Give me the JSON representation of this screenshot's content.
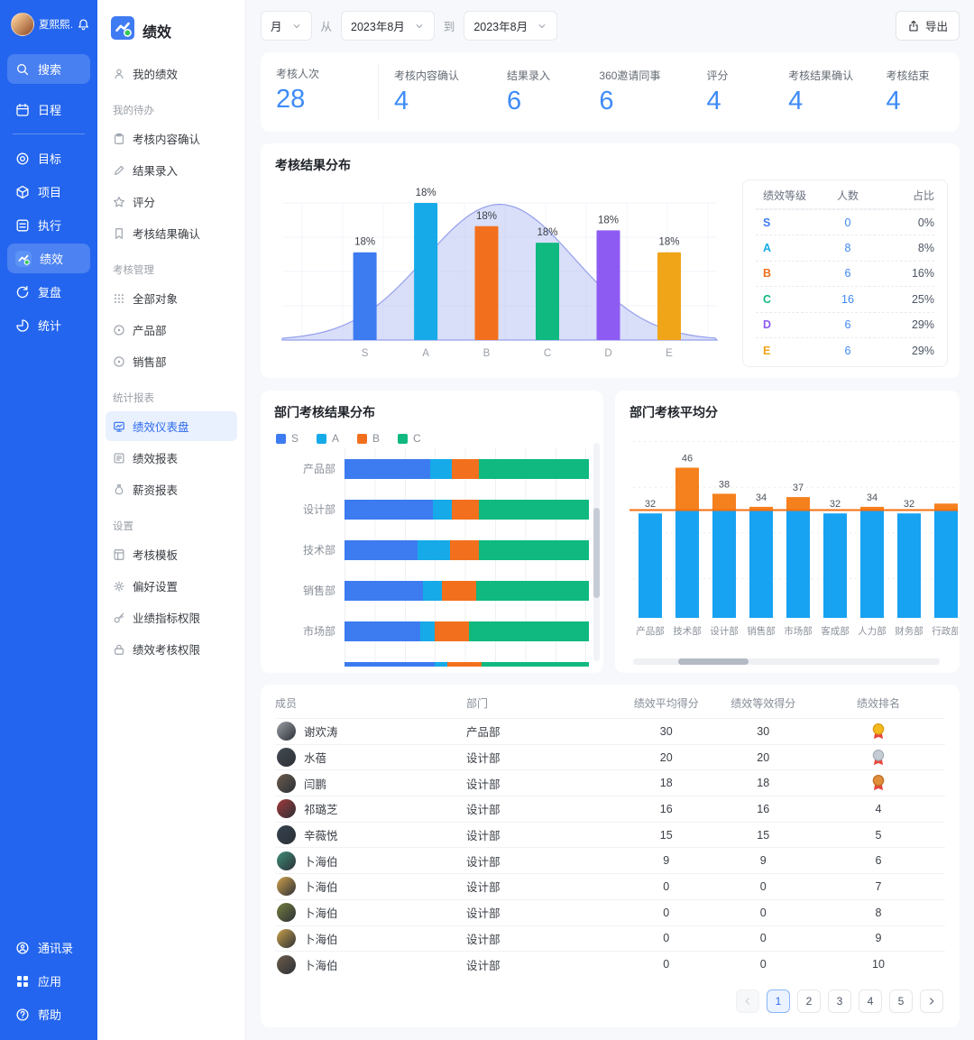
{
  "colors": {
    "rail_bg": "#2365ee",
    "accent": "#2f6bef",
    "stat_number": "#3e8bf7",
    "grade_S": "#3d7bf0",
    "grade_A": "#16aae8",
    "grade_B": "#f2701d",
    "grade_C": "#0fb97f",
    "grade_D": "#8d5bf2",
    "grade_E": "#f0a418",
    "avg_bar_blue": "#18a2f2",
    "avg_bar_orange": "#f5801e",
    "avg_line": "#f56f12",
    "curve_fill": "#b9c2f4",
    "medal_gold": "#f5b91e",
    "medal_silver": "#c4ccd4",
    "medal_bronze": "#e08e3c"
  },
  "rail": {
    "user_name": "夏熙熙…",
    "items": [
      {
        "id": "search",
        "icon": "search",
        "label": "搜索",
        "style": "search"
      },
      {
        "id": "schedule",
        "icon": "calendar",
        "label": "日程"
      },
      {
        "divider": true
      },
      {
        "id": "goals",
        "icon": "target",
        "label": "目标"
      },
      {
        "id": "projects",
        "icon": "cube",
        "label": "项目"
      },
      {
        "id": "execution",
        "icon": "tasks",
        "label": "执行"
      },
      {
        "id": "performance",
        "icon": "app",
        "label": "绩效",
        "active": true
      },
      {
        "id": "review",
        "icon": "replay",
        "label": "复盘"
      },
      {
        "id": "statistics",
        "icon": "pie",
        "label": "统计"
      }
    ],
    "bottom_items": [
      {
        "id": "contacts",
        "icon": "contacts",
        "label": "通讯录"
      },
      {
        "id": "apps",
        "icon": "apps",
        "label": "应用"
      },
      {
        "id": "help",
        "icon": "help",
        "label": "帮助"
      }
    ]
  },
  "sidebar": {
    "title": "绩效",
    "my_item": {
      "id": "my-performance",
      "icon": "user",
      "label": "我的绩效"
    },
    "sections": [
      {
        "label": "我的待办",
        "items": [
          {
            "id": "content-confirm",
            "icon": "clipboard",
            "label": "考核内容确认"
          },
          {
            "id": "result-entry",
            "icon": "pencil",
            "label": "结果录入"
          },
          {
            "id": "scoring",
            "icon": "star",
            "label": "评分"
          },
          {
            "id": "result-confirm",
            "icon": "bookmark",
            "label": "考核结果确认"
          }
        ]
      },
      {
        "label": "考核管理",
        "items": [
          {
            "id": "all-objects",
            "icon": "grid-dots",
            "label": "全部对象"
          },
          {
            "id": "product-dept",
            "icon": "org",
            "label": "产品部"
          },
          {
            "id": "sales-dept",
            "icon": "org",
            "label": "销售部"
          }
        ]
      },
      {
        "label": "统计报表",
        "items": [
          {
            "id": "perf-dashboard",
            "icon": "dashboard",
            "label": "绩效仪表盘",
            "active": true
          },
          {
            "id": "perf-report",
            "icon": "report",
            "label": "绩效报表"
          },
          {
            "id": "salary-report",
            "icon": "money-bag",
            "label": "薪资报表"
          }
        ]
      },
      {
        "label": "设置",
        "items": [
          {
            "id": "assess-template",
            "icon": "template",
            "label": "考核模板"
          },
          {
            "id": "preferences",
            "icon": "gear",
            "label": "偏好设置"
          },
          {
            "id": "kpi-permission",
            "icon": "key",
            "label": "业绩指标权限"
          },
          {
            "id": "perf-permission",
            "icon": "lock",
            "label": "绩效考核权限"
          }
        ]
      }
    ]
  },
  "filters": {
    "granularity": "月",
    "from_label": "从",
    "from_value": "2023年8月",
    "to_label": "到",
    "to_value": "2023年8月"
  },
  "export_button": {
    "label": "导出"
  },
  "stats": [
    {
      "label": "考核人次",
      "value": "28"
    },
    {
      "label": "考核内容确认",
      "value": "4"
    },
    {
      "label": "结果录入",
      "value": "6"
    },
    {
      "label": "360邀请同事",
      "value": "6"
    },
    {
      "label": "评分",
      "value": "4"
    },
    {
      "label": "考核结果确认",
      "value": "4"
    },
    {
      "label": "考核结束",
      "value": "4"
    }
  ],
  "chart_data": [
    {
      "type": "bar",
      "title": "考核结果分布",
      "categories": [
        "S",
        "A",
        "B",
        "C",
        "D",
        "E"
      ],
      "percent_labels": [
        "18%",
        "18%",
        "18%",
        "18%",
        "18%",
        "18%"
      ],
      "relative_heights": [
        0.64,
        1.0,
        0.83,
        0.71,
        0.8,
        0.64
      ],
      "overlay": "normal-distribution-curve",
      "grid": true
    },
    {
      "type": "bar",
      "orientation": "horizontal",
      "stacked": true,
      "title": "部门考核结果分布",
      "legend": [
        "S",
        "A",
        "B",
        "C"
      ],
      "categories": [
        "产品部",
        "设计部",
        "技术部",
        "销售部",
        "市场部",
        ""
      ],
      "series": [
        {
          "name": "S",
          "values": [
            35,
            36,
            30,
            32,
            31,
            37
          ]
        },
        {
          "name": "A",
          "values": [
            9,
            8,
            13,
            8,
            6,
            5
          ]
        },
        {
          "name": "B",
          "values": [
            11,
            11,
            12,
            14,
            14,
            14
          ]
        },
        {
          "name": "C",
          "values": [
            45,
            45,
            45,
            46,
            49,
            44
          ]
        }
      ],
      "note": "sixth row partially visible, vertical scrollbar shown"
    },
    {
      "type": "bar",
      "title": "部门考核平均分",
      "categories": [
        "产品部",
        "技术部",
        "设计部",
        "销售部",
        "市场部",
        "客成部",
        "人力部",
        "财务部",
        "行政部"
      ],
      "values": [
        32,
        46,
        38,
        34,
        37,
        32,
        34,
        32,
        35
      ],
      "value_labels": [
        "32",
        "46",
        "38",
        "34",
        "37",
        "32",
        "34",
        "32",
        ""
      ],
      "average_line": 33,
      "note": "ninth bar clipped at right card edge, horizontal scrollbar shown"
    }
  ],
  "grade_table": {
    "headers": [
      "绩效等级",
      "人数",
      "占比"
    ],
    "rows": [
      {
        "grade": "S",
        "count": "0",
        "pct": "0%"
      },
      {
        "grade": "A",
        "count": "8",
        "pct": "8%"
      },
      {
        "grade": "B",
        "count": "6",
        "pct": "16%"
      },
      {
        "grade": "C",
        "count": "16",
        "pct": "25%"
      },
      {
        "grade": "D",
        "count": "6",
        "pct": "29%"
      },
      {
        "grade": "E",
        "count": "6",
        "pct": "29%"
      }
    ]
  },
  "members_table": {
    "headers": [
      "成员",
      "部门",
      "绩效平均得分",
      "绩效等效得分",
      "绩效排名"
    ],
    "rows": [
      {
        "name": "谢欢涛",
        "dept": "产品部",
        "avg": "30",
        "equiv": "30",
        "rank": "1",
        "medal": "gold"
      },
      {
        "name": "水蓓",
        "dept": "设计部",
        "avg": "20",
        "equiv": "20",
        "rank": "2",
        "medal": "silver"
      },
      {
        "name": "闫鹏",
        "dept": "设计部",
        "avg": "18",
        "equiv": "18",
        "rank": "3",
        "medal": "bronze"
      },
      {
        "name": "祁璐芝",
        "dept": "设计部",
        "avg": "16",
        "equiv": "16",
        "rank": "4"
      },
      {
        "name": "辛薇悦",
        "dept": "设计部",
        "avg": "15",
        "equiv": "15",
        "rank": "5"
      },
      {
        "name": "卜海伯",
        "dept": "设计部",
        "avg": "9",
        "equiv": "9",
        "rank": "6"
      },
      {
        "name": "卜海伯",
        "dept": "设计部",
        "avg": "0",
        "equiv": "0",
        "rank": "7"
      },
      {
        "name": "卜海伯",
        "dept": "设计部",
        "avg": "0",
        "equiv": "0",
        "rank": "8"
      },
      {
        "name": "卜海伯",
        "dept": "设计部",
        "avg": "0",
        "equiv": "0",
        "rank": "9"
      },
      {
        "name": "卜海伯",
        "dept": "设计部",
        "avg": "0",
        "equiv": "0",
        "rank": "10"
      }
    ]
  },
  "pagination": {
    "pages": [
      "1",
      "2",
      "3",
      "4",
      "5"
    ],
    "active": "1"
  }
}
